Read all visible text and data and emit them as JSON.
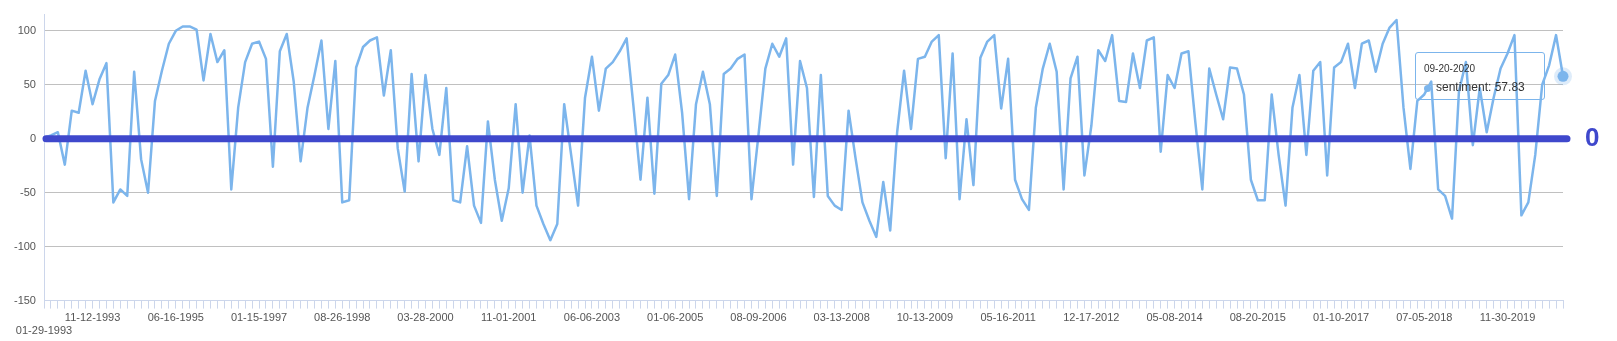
{
  "chart_data": {
    "type": "line",
    "categories": [
      "01-29-1993",
      null,
      null,
      null,
      null,
      null,
      null,
      "11-12-1993",
      null,
      null,
      null,
      null,
      null,
      null,
      null,
      null,
      null,
      null,
      null,
      "06-16-1995",
      null,
      null,
      null,
      null,
      null,
      null,
      null,
      null,
      null,
      null,
      null,
      "01-15-1997",
      null,
      null,
      null,
      null,
      null,
      null,
      null,
      null,
      null,
      null,
      null,
      "08-26-1998",
      null,
      null,
      null,
      null,
      null,
      null,
      null,
      null,
      null,
      null,
      null,
      "03-28-2000",
      null,
      null,
      null,
      null,
      null,
      null,
      null,
      null,
      null,
      null,
      null,
      "11-01-2001",
      null,
      null,
      null,
      null,
      null,
      null,
      null,
      null,
      null,
      null,
      null,
      "06-06-2003",
      null,
      null,
      null,
      null,
      null,
      null,
      null,
      null,
      null,
      null,
      null,
      "01-06-2005",
      null,
      null,
      null,
      null,
      null,
      null,
      null,
      null,
      null,
      null,
      null,
      "08-09-2006",
      null,
      null,
      null,
      null,
      null,
      null,
      null,
      null,
      null,
      null,
      null,
      "03-13-2008",
      null,
      null,
      null,
      null,
      null,
      null,
      null,
      null,
      null,
      null,
      null,
      "10-13-2009",
      null,
      null,
      null,
      null,
      null,
      null,
      null,
      null,
      null,
      null,
      null,
      "05-16-2011",
      null,
      null,
      null,
      null,
      null,
      null,
      null,
      null,
      null,
      null,
      null,
      "12-17-2012",
      null,
      null,
      null,
      null,
      null,
      null,
      null,
      null,
      null,
      null,
      null,
      "05-08-2014",
      null,
      null,
      null,
      null,
      null,
      null,
      null,
      null,
      null,
      null,
      null,
      "08-20-2015",
      null,
      null,
      null,
      null,
      null,
      null,
      null,
      null,
      null,
      null,
      null,
      "01-10-2017",
      null,
      null,
      null,
      null,
      null,
      null,
      null,
      null,
      null,
      null,
      null,
      "07-05-2018",
      null,
      null,
      null,
      null,
      null,
      null,
      null,
      null,
      null,
      null,
      null,
      "11-30-2019",
      null,
      null,
      null,
      null,
      null,
      null,
      null,
      null
    ],
    "values": [
      1,
      3,
      6,
      -24,
      26,
      24,
      63,
      32,
      55,
      70,
      -59,
      -47,
      -53,
      62,
      -19,
      -50,
      35,
      63,
      88,
      100,
      104,
      104,
      101,
      54,
      97,
      71,
      82,
      -47,
      29,
      71,
      88,
      90,
      74,
      -26,
      81,
      97,
      53,
      -21,
      29,
      59,
      91,
      9,
      72,
      -59,
      -57,
      66,
      85,
      91,
      94,
      40,
      82,
      -9,
      -49,
      60,
      -21,
      59,
      9,
      -15,
      47,
      -57,
      -59,
      -7,
      -62,
      -78,
      16,
      -38,
      -76,
      -46,
      32,
      -50,
      3,
      -62,
      -79,
      -94,
      -79,
      32,
      -15,
      -62,
      38,
      76,
      26,
      65,
      71,
      81,
      93,
      29,
      -38,
      38,
      -51,
      51,
      59,
      78,
      24,
      -56,
      32,
      62,
      32,
      -53,
      60,
      65,
      74,
      78,
      -56,
      3,
      65,
      88,
      76,
      93,
      -24,
      72,
      47,
      -54,
      59,
      -53,
      -62,
      -66,
      26,
      -18,
      -59,
      -76,
      -91,
      -40,
      -85,
      6,
      63,
      9,
      74,
      76,
      90,
      96,
      -18,
      79,
      -56,
      18,
      -43,
      75,
      90,
      96,
      28,
      74,
      -38,
      -56,
      -66,
      29,
      65,
      88,
      62,
      -47,
      56,
      76,
      -34,
      12,
      82,
      72,
      96,
      35,
      34,
      79,
      47,
      91,
      94,
      -12,
      59,
      47,
      79,
      81,
      15,
      -47,
      65,
      41,
      18,
      66,
      65,
      41,
      -38,
      -57,
      -57,
      41,
      -15,
      -62,
      29,
      59,
      -15,
      63,
      71,
      -34,
      66,
      71,
      88,
      47,
      88,
      91,
      62,
      88,
      103,
      110,
      29,
      -28,
      35,
      41,
      53,
      -47,
      -53,
      -74,
      44,
      71,
      -6,
      47,
      6,
      38,
      65,
      79,
      96,
      -71,
      -59,
      -15,
      50,
      68,
      96,
      57.83
    ],
    "color": "#7cb5ec",
    "marker": "none",
    "ylim": [
      -150,
      115
    ],
    "yticks": [
      -150,
      -100,
      -50,
      0,
      50,
      100
    ],
    "grid": "y",
    "ref_lines": [
      {
        "axis": "y",
        "value": 0,
        "label": "0",
        "color": "#3f48cc"
      }
    ],
    "annotations": [
      "09-20-2020\nsentiment: 57.83"
    ]
  }
}
